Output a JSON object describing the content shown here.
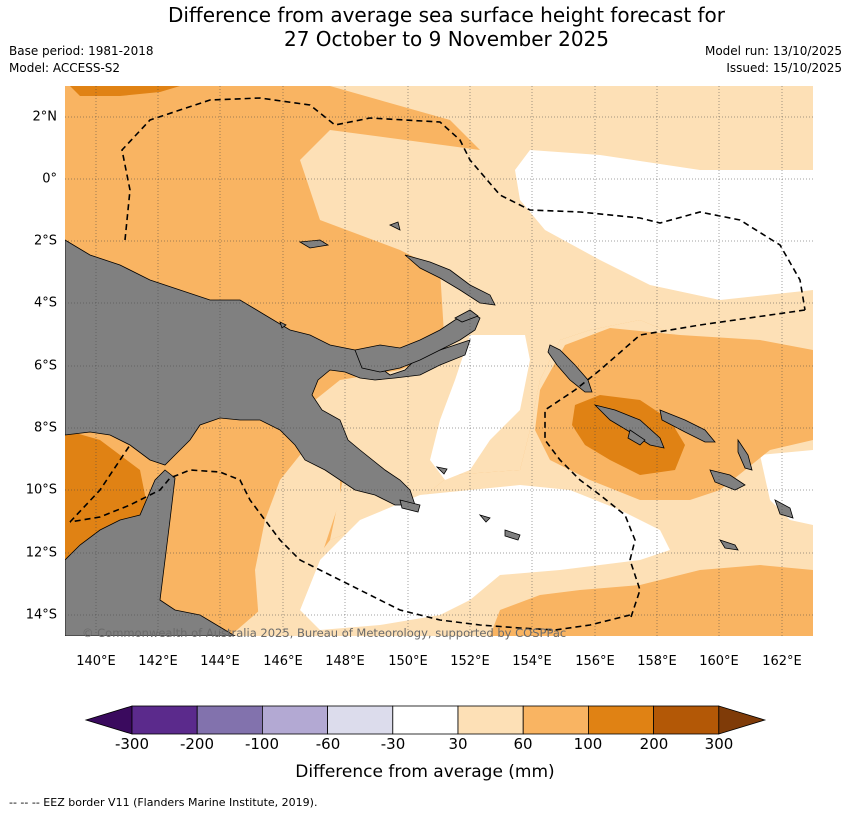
{
  "header": {
    "title_line1": "Difference from average sea surface height forecast for",
    "title_line2": "27 October to 9 November 2025",
    "base_period": "Base period: 1981-2018",
    "model": "Model: ACCESS-S2",
    "model_run": "Model run: 13/10/2025",
    "issued": "Issued: 15/10/2025"
  },
  "map": {
    "lat_labels": [
      "2°N",
      "0°",
      "2°S",
      "4°S",
      "6°S",
      "8°S",
      "10°S",
      "12°S",
      "14°S"
    ],
    "lon_labels": [
      "140°E",
      "142°E",
      "144°E",
      "146°E",
      "148°E",
      "150°E",
      "152°E",
      "154°E",
      "156°E",
      "158°E",
      "160°E",
      "162°E"
    ],
    "land_color": "#808080",
    "credit": "© Commonwealth of Australia 2025, Bureau of Meteorology, supported by COSPPac"
  },
  "colorbar": {
    "labels": [
      "-300",
      "-200",
      "-100",
      "-60",
      "-30",
      "30",
      "60",
      "100",
      "200",
      "300"
    ],
    "colors": [
      "#3a0a5e",
      "#5b2a8c",
      "#8272ad",
      "#b3a9d3",
      "#dcdcec",
      "#ffffff",
      "#fde0b6",
      "#f9b462",
      "#e08214",
      "#b35806",
      "#7f3b08"
    ],
    "title": "Difference from average (mm)"
  },
  "footnote": "--  --  -- EEZ border V11 (Flanders Marine Institute, 2019)."
}
